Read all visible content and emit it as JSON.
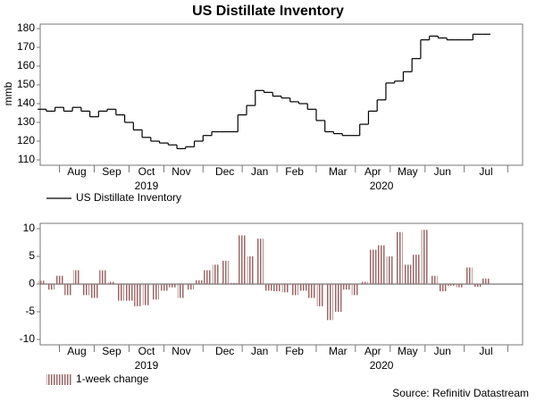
{
  "source": "Source: Refinitiv Datastream",
  "chart_data": [
    {
      "type": "line",
      "title": "US Distillate Inventory",
      "y_label": "mmb",
      "categories": [
        null,
        null,
        null,
        null,
        "Aug",
        null,
        null,
        null,
        "Sep",
        null,
        null,
        null,
        "Oct",
        null,
        null,
        null,
        "Nov",
        null,
        null,
        null,
        null,
        "Dec",
        null,
        null,
        null,
        "Jan",
        null,
        null,
        null,
        "Feb",
        null,
        null,
        null,
        null,
        "Mar",
        null,
        null,
        null,
        "Apr",
        null,
        null,
        null,
        "May",
        null,
        null,
        null,
        "Jun",
        null,
        null,
        null,
        null,
        "Jul",
        null,
        null,
        null,
        null
      ],
      "year_labels": [
        null,
        null,
        null,
        null,
        null,
        null,
        null,
        null,
        null,
        null,
        null,
        null,
        "2019",
        null,
        null,
        null,
        null,
        null,
        null,
        null,
        null,
        null,
        null,
        null,
        null,
        null,
        null,
        null,
        null,
        null,
        null,
        null,
        null,
        null,
        null,
        null,
        null,
        null,
        null,
        "2020",
        null,
        null,
        null,
        null,
        null,
        null,
        null,
        null,
        null,
        null,
        null,
        null,
        null,
        null,
        null,
        null
      ],
      "series": [
        {
          "name": "US Distillate Inventory",
          "color": "#000000",
          "values": [
            137,
            136,
            138,
            136,
            138,
            136,
            133,
            136,
            137,
            134,
            130,
            126,
            122,
            120,
            119,
            118,
            116,
            117,
            120,
            123,
            125,
            125,
            125,
            134,
            139,
            147,
            146,
            144,
            143,
            141,
            140,
            137,
            131,
            125,
            124,
            123,
            123,
            129,
            136,
            142,
            151,
            152,
            157,
            164,
            174,
            176,
            175,
            174,
            174,
            174,
            177,
            177,
            null,
            null,
            null,
            null
          ]
        }
      ],
      "ylim": [
        110,
        180
      ],
      "yticks": [
        110,
        120,
        130,
        140,
        150,
        160,
        170,
        180
      ],
      "legend": "bottom-left"
    },
    {
      "type": "bar",
      "categories": [
        null,
        null,
        null,
        null,
        "Aug",
        null,
        null,
        null,
        "Sep",
        null,
        null,
        null,
        "Oct",
        null,
        null,
        null,
        "Nov",
        null,
        null,
        null,
        null,
        "Dec",
        null,
        null,
        null,
        "Jan",
        null,
        null,
        null,
        "Feb",
        null,
        null,
        null,
        null,
        "Mar",
        null,
        null,
        null,
        "Apr",
        null,
        null,
        null,
        "May",
        null,
        null,
        null,
        "Jun",
        null,
        null,
        null,
        null,
        "Jul",
        null,
        null,
        null,
        null
      ],
      "year_labels": [
        null,
        null,
        null,
        null,
        null,
        null,
        null,
        null,
        null,
        null,
        null,
        null,
        "2019",
        null,
        null,
        null,
        null,
        null,
        null,
        null,
        null,
        null,
        null,
        null,
        null,
        null,
        null,
        null,
        null,
        null,
        null,
        null,
        null,
        null,
        null,
        null,
        null,
        null,
        null,
        "2020",
        null,
        null,
        null,
        null,
        null,
        null,
        null,
        null,
        null,
        null,
        null,
        null,
        null,
        null,
        null,
        null
      ],
      "series": [
        {
          "name": "1-week change",
          "color": "#9c6666",
          "values": [
            0.6,
            -1,
            1.5,
            -2,
            2.5,
            -2,
            -2.5,
            2.5,
            0.4,
            -3,
            -3,
            -4,
            -3.8,
            -2.8,
            -1.2,
            -0.6,
            -2.5,
            -1,
            0.7,
            2.5,
            3.5,
            4.2,
            0.2,
            8.8,
            5,
            8.2,
            -1.2,
            -1.3,
            -1.5,
            -2,
            -1.2,
            -2.5,
            -4,
            -6.5,
            -5,
            -1,
            -2,
            0.4,
            6.2,
            7,
            5,
            9.4,
            3.5,
            5.3,
            9.8,
            1.5,
            -1.3,
            -0.3,
            -0.6,
            3,
            -0.5,
            1,
            null,
            null,
            null,
            null
          ]
        }
      ],
      "ylim": [
        -10,
        10
      ],
      "yticks": [
        -10,
        -5,
        0,
        5,
        10
      ],
      "legend": "bottom-left"
    }
  ]
}
